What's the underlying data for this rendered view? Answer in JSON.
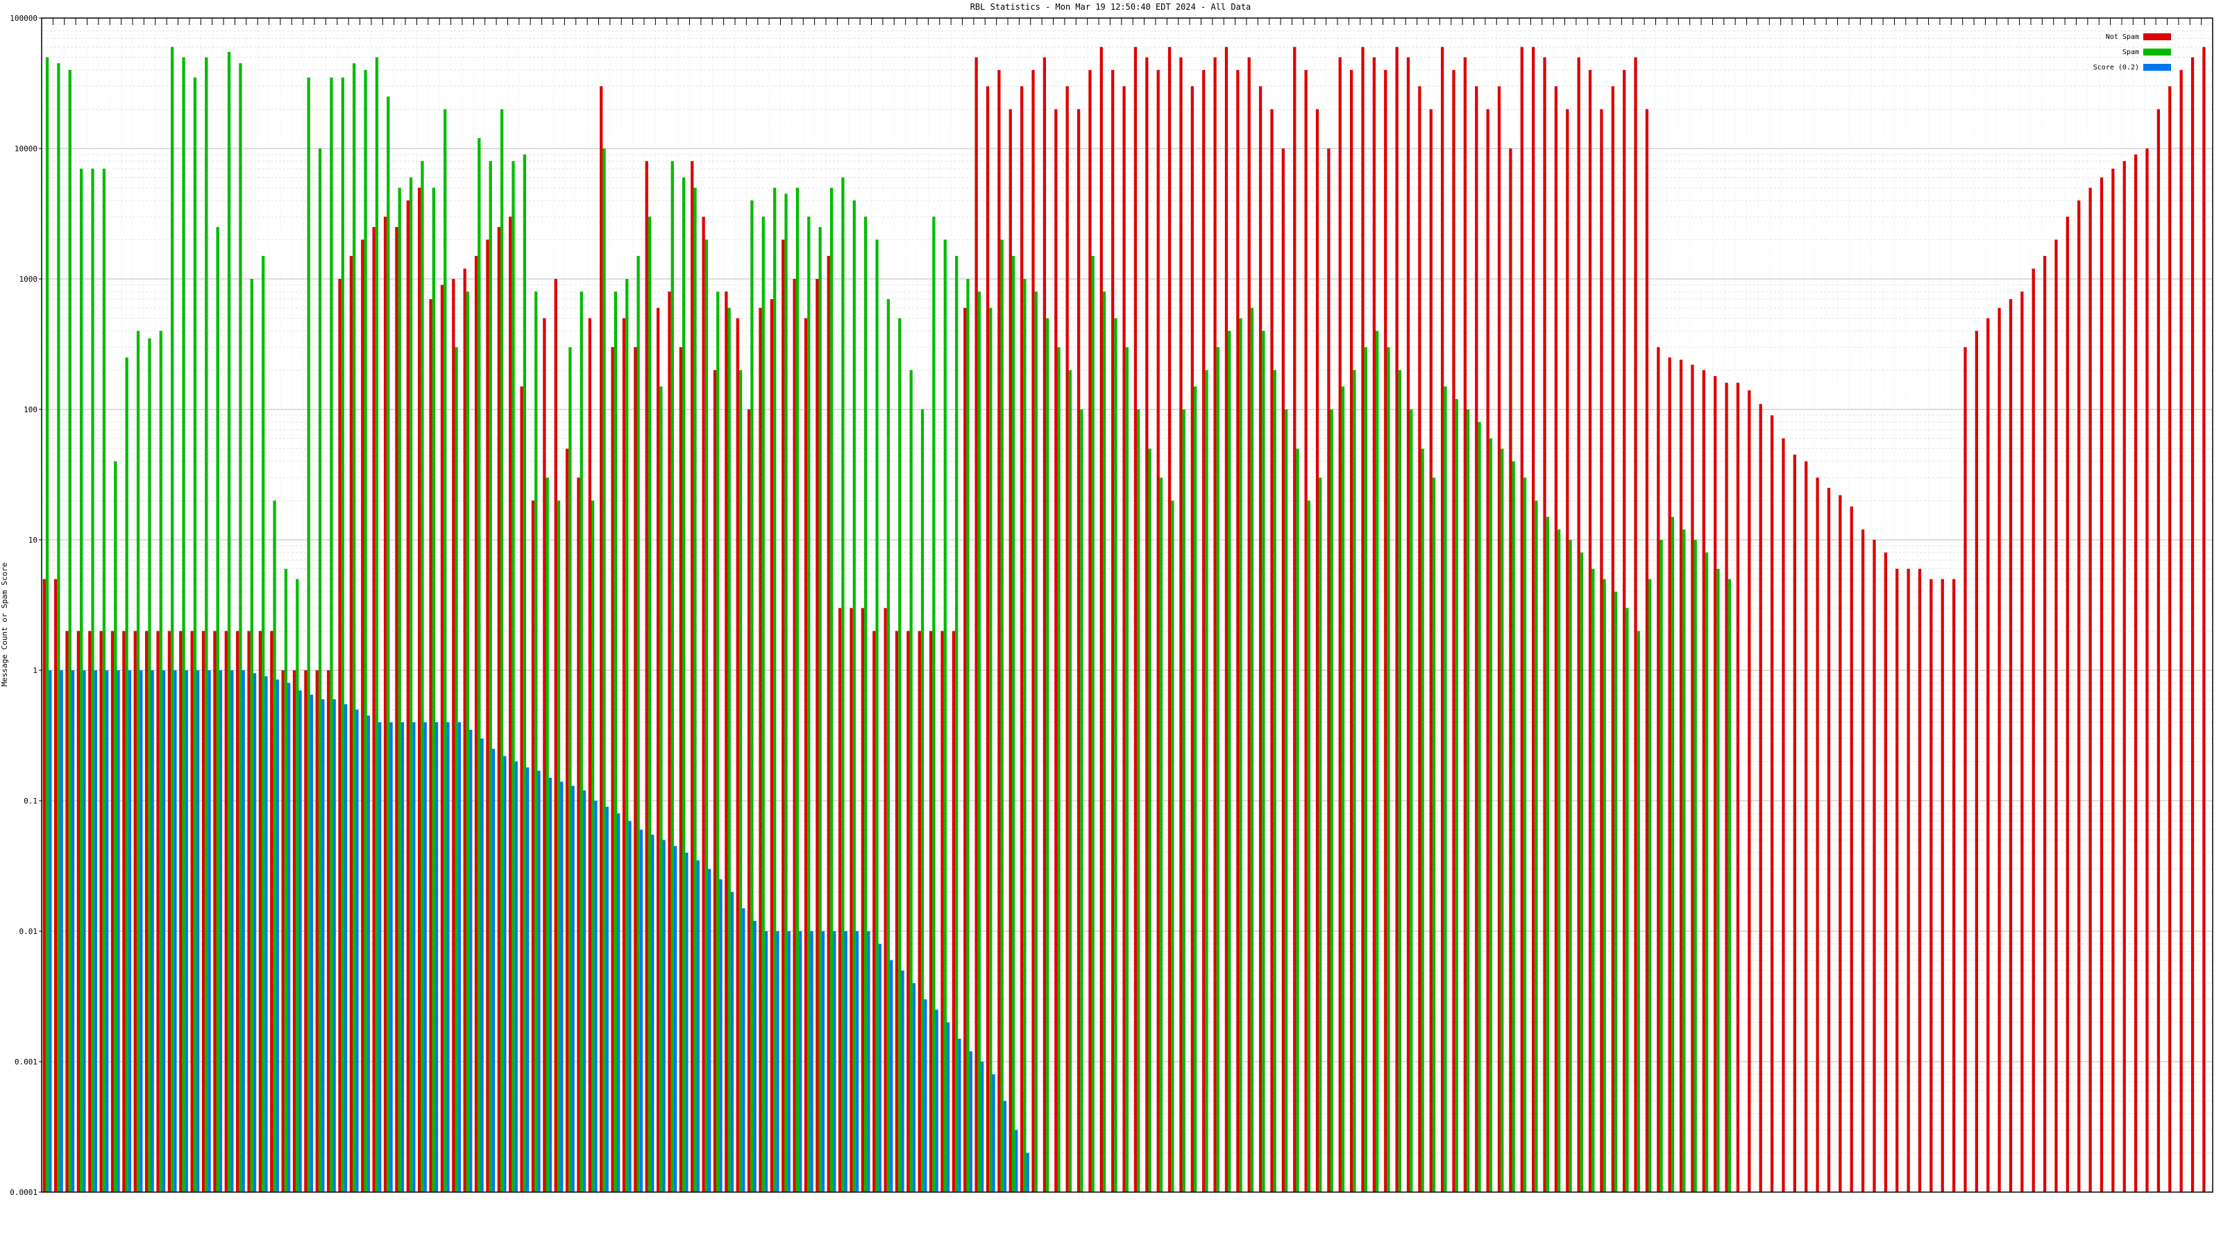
{
  "chart_data": {
    "type": "bar",
    "title": "RBL Statistics - Mon Mar 19 12:50:40 EDT 2024 - All Data",
    "ylabel": "Message Count or Spam Score",
    "xlabel": "",
    "y_scale": "log",
    "ylim": [
      0.0001,
      100000
    ],
    "y_ticks": [
      "0.0001",
      "0.001",
      "0.01",
      "0.1",
      "1",
      "10",
      "100",
      "1000",
      "10000",
      "100000"
    ],
    "grid": true,
    "legend_position": "top-right",
    "series": [
      {
        "name": "Not Spam",
        "color": "#dd0000",
        "values": [
          5,
          5,
          2,
          2,
          2,
          2,
          2,
          2,
          2,
          2,
          2,
          2,
          2,
          2,
          2,
          2,
          2,
          2,
          2,
          2,
          2,
          1,
          1,
          1,
          1,
          1,
          1000,
          1500,
          2000,
          2500,
          3000,
          2500,
          4000,
          5000,
          700,
          900,
          1000,
          1200,
          1500,
          2000,
          2500,
          3000,
          150,
          20,
          500,
          1000,
          50,
          30,
          500,
          30000,
          300,
          500,
          300,
          8000,
          600,
          800,
          300,
          8000,
          3000,
          200,
          800,
          500,
          100,
          600,
          700,
          2000,
          1000,
          500,
          1000,
          1500,
          3,
          3,
          3,
          2,
          3,
          2,
          2,
          2,
          2,
          2,
          2,
          600,
          50000,
          30000,
          40000,
          20000,
          30000,
          40000,
          50000,
          20000,
          30000,
          20000,
          40000,
          60000,
          40000,
          30000,
          60000,
          50000,
          40000,
          60000,
          50000,
          30000,
          40000,
          50000,
          60000,
          40000,
          50000,
          30000,
          20000,
          10000,
          60000,
          40000,
          20000,
          10000,
          50000,
          40000,
          60000,
          50000,
          40000,
          60000,
          50000,
          30000,
          20000,
          60000,
          40000,
          50000,
          30000,
          20000,
          30000,
          10000,
          60000,
          60000,
          50000,
          30000,
          20000,
          50000,
          40000,
          20000,
          30000,
          40000,
          50000,
          20000,
          300,
          250,
          240,
          220,
          200,
          180,
          160,
          160,
          140,
          110,
          90,
          60,
          45,
          40,
          30,
          25,
          22,
          18,
          12,
          10,
          8,
          6,
          6,
          6,
          5,
          5,
          5,
          300,
          400,
          500,
          600,
          700,
          800,
          1200,
          1500,
          2000,
          3000,
          4000,
          5000,
          6000,
          7000,
          8000,
          9000,
          10000,
          20000,
          30000,
          40000,
          50000,
          60000
        ]
      },
      {
        "name": "Spam",
        "color": "#00bb00",
        "values": [
          50000,
          45000,
          40000,
          7000,
          7000,
          7000,
          40,
          250,
          400,
          350,
          400,
          60000,
          50000,
          35000,
          50000,
          2500,
          55000,
          45000,
          1000,
          1500,
          20,
          6,
          5,
          35000,
          10000,
          35000,
          35000,
          45000,
          40000,
          50000,
          25000,
          5000,
          6000,
          8000,
          5000,
          20000,
          300,
          800,
          12000,
          8000,
          20000,
          8000,
          9000,
          800,
          30,
          20,
          300,
          800,
          20,
          10000,
          800,
          1000,
          1500,
          3000,
          150,
          8000,
          6000,
          5000,
          2000,
          800,
          600,
          200,
          4000,
          3000,
          5000,
          4500,
          5000,
          3000,
          2500,
          5000,
          6000,
          4000,
          3000,
          2000,
          700,
          500,
          200,
          100,
          3000,
          2000,
          1500,
          1000,
          800,
          600,
          2000,
          1500,
          1000,
          800,
          500,
          300,
          200,
          100,
          1500,
          800,
          500,
          300,
          100,
          50,
          30,
          20,
          100,
          150,
          200,
          300,
          400,
          500,
          600,
          400,
          200,
          100,
          50,
          20,
          30,
          100,
          150,
          200,
          300,
          400,
          300,
          200,
          100,
          50,
          30,
          150,
          120,
          100,
          80,
          60,
          50,
          40,
          30,
          20,
          15,
          12,
          10,
          8,
          6,
          5,
          4,
          3,
          2,
          5,
          10,
          15,
          12,
          10,
          8,
          6,
          5
        ]
      },
      {
        "name": "Score (0.2)",
        "color": "#0077ee",
        "values": [
          1,
          1,
          1,
          1,
          1,
          1,
          1,
          1,
          1,
          1,
          1,
          1,
          1,
          1,
          1,
          1,
          1,
          1,
          0.95,
          0.9,
          0.85,
          0.8,
          0.7,
          0.65,
          0.6,
          0.6,
          0.55,
          0.5,
          0.45,
          0.4,
          0.4,
          0.4,
          0.4,
          0.4,
          0.4,
          0.4,
          0.4,
          0.35,
          0.3,
          0.25,
          0.22,
          0.2,
          0.18,
          0.17,
          0.15,
          0.14,
          0.13,
          0.12,
          0.1,
          0.09,
          0.08,
          0.07,
          0.06,
          0.055,
          0.05,
          0.045,
          0.04,
          0.035,
          0.03,
          0.025,
          0.02,
          0.015,
          0.012,
          0.01,
          0.01,
          0.01,
          0.01,
          0.01,
          0.01,
          0.01,
          0.01,
          0.01,
          0.01,
          0.008,
          0.006,
          0.005,
          0.004,
          0.003,
          0.0025,
          0.002,
          0.0015,
          0.0012,
          0.001,
          0.0008,
          0.0005,
          0.0003,
          0.0002
        ]
      }
    ]
  }
}
